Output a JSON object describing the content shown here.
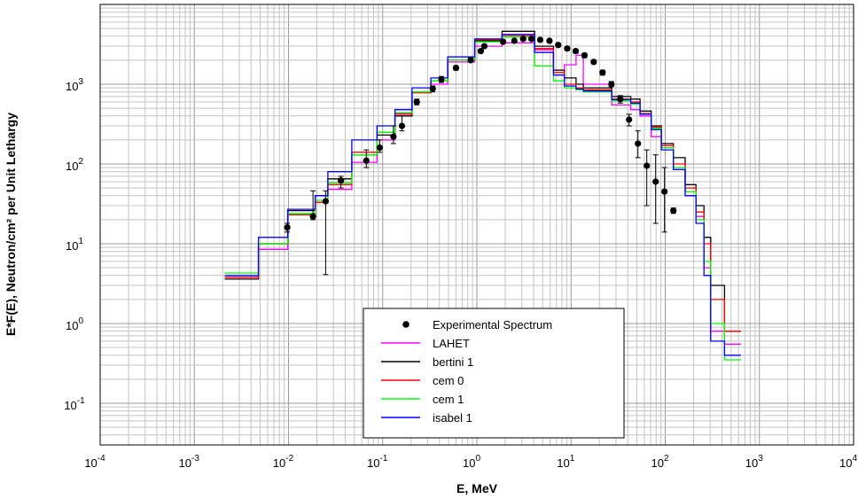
{
  "chart_data": {
    "type": "line",
    "title": "",
    "xlabel": "E, MeV",
    "ylabel": "E*F(E), Neutron/cm² per Unit Lethargy",
    "xscale": "log",
    "yscale": "log",
    "xlim": [
      0.0001,
      10000
    ],
    "ylim": [
      0.03,
      10000
    ],
    "grid": true,
    "legend_position": "bottom-center",
    "x_ticks": [
      {
        "value": 0.0001,
        "base": "10",
        "exp": "-4"
      },
      {
        "value": 0.001,
        "base": "10",
        "exp": "-3"
      },
      {
        "value": 0.01,
        "base": "10",
        "exp": "-2"
      },
      {
        "value": 0.1,
        "base": "10",
        "exp": "-1"
      },
      {
        "value": 1,
        "base": "10",
        "exp": "0"
      },
      {
        "value": 10,
        "base": "10",
        "exp": "1"
      },
      {
        "value": 100,
        "base": "10",
        "exp": "2"
      },
      {
        "value": 1000,
        "base": "10",
        "exp": "3"
      },
      {
        "value": 10000,
        "base": "10",
        "exp": "4"
      }
    ],
    "y_ticks": [
      {
        "value": 0.1,
        "base": "10",
        "exp": "-1"
      },
      {
        "value": 1,
        "base": "10",
        "exp": "0"
      },
      {
        "value": 10,
        "base": "10",
        "exp": "1"
      },
      {
        "value": 100,
        "base": "10",
        "exp": "2"
      },
      {
        "value": 1000,
        "base": "10",
        "exp": "3"
      }
    ],
    "experimental": {
      "name": "Experimental Spectrum",
      "color": "#000000",
      "points": [
        {
          "x": 0.0097,
          "y": 16,
          "lo": 14,
          "hi": 18
        },
        {
          "x": 0.0182,
          "y": 22,
          "lo": 20,
          "hi": 46
        },
        {
          "x": 0.0248,
          "y": 34,
          "lo": 4.1,
          "hi": 46
        },
        {
          "x": 0.036,
          "y": 62,
          "lo": 50,
          "hi": 70
        },
        {
          "x": 0.067,
          "y": 110,
          "lo": 90,
          "hi": 150
        },
        {
          "x": 0.093,
          "y": 160,
          "lo": 140,
          "hi": 200
        },
        {
          "x": 0.13,
          "y": 220,
          "lo": 180,
          "hi": 300
        },
        {
          "x": 0.16,
          "y": 300,
          "lo": 260,
          "hi": 400
        },
        {
          "x": 0.23,
          "y": 600,
          "lo": 550,
          "hi": 650
        },
        {
          "x": 0.34,
          "y": 880,
          "lo": 800,
          "hi": 950
        },
        {
          "x": 0.42,
          "y": 1150,
          "lo": 1050,
          "hi": 1250
        },
        {
          "x": 0.6,
          "y": 1600,
          "lo": 1500,
          "hi": 1700
        },
        {
          "x": 0.86,
          "y": 2000,
          "lo": 1900,
          "hi": 2150
        },
        {
          "x": 1.1,
          "y": 2600,
          "lo": 2500,
          "hi": 2750
        },
        {
          "x": 1.2,
          "y": 3000,
          "lo": 2850,
          "hi": 3150
        },
        {
          "x": 1.9,
          "y": 3400,
          "lo": 3250,
          "hi": 3550
        },
        {
          "x": 2.5,
          "y": 3500,
          "lo": 3350,
          "hi": 3650
        },
        {
          "x": 3.1,
          "y": 3700,
          "lo": 3550,
          "hi": 3850
        },
        {
          "x": 3.8,
          "y": 3700,
          "lo": 3550,
          "hi": 3850
        },
        {
          "x": 4.7,
          "y": 3600,
          "lo": 3450,
          "hi": 3750
        },
        {
          "x": 5.9,
          "y": 3500,
          "lo": 3350,
          "hi": 3650
        },
        {
          "x": 7.3,
          "y": 3100,
          "lo": 2950,
          "hi": 3250
        },
        {
          "x": 9.1,
          "y": 2800,
          "lo": 2650,
          "hi": 2950
        },
        {
          "x": 11.2,
          "y": 2600,
          "lo": 2450,
          "hi": 2750
        },
        {
          "x": 13.9,
          "y": 2300,
          "lo": 2150,
          "hi": 2450
        },
        {
          "x": 17.4,
          "y": 1900,
          "lo": 1800,
          "hi": 2000
        },
        {
          "x": 21.6,
          "y": 1400,
          "lo": 1300,
          "hi": 1500
        },
        {
          "x": 26.8,
          "y": 1000,
          "lo": 930,
          "hi": 1080
        },
        {
          "x": 33.3,
          "y": 650,
          "lo": 580,
          "hi": 720
        },
        {
          "x": 41.3,
          "y": 360,
          "lo": 300,
          "hi": 420
        },
        {
          "x": 51.3,
          "y": 180,
          "lo": 120,
          "hi": 260
        },
        {
          "x": 63.7,
          "y": 95,
          "lo": 30,
          "hi": 150
        },
        {
          "x": 79.1,
          "y": 60,
          "lo": 18,
          "hi": 130
        },
        {
          "x": 98.2,
          "y": 45,
          "lo": 14,
          "hi": 90
        },
        {
          "x": 122,
          "y": 26,
          "lo": 24,
          "hi": 28
        }
      ]
    },
    "series": [
      {
        "name": "LAHET",
        "color": "#ff00ff",
        "bins": [
          [
            0.0021,
            3.8
          ],
          [
            0.0048,
            8.5
          ],
          [
            0.0098,
            23
          ],
          [
            0.0192,
            33
          ],
          [
            0.0262,
            48
          ],
          [
            0.047,
            105
          ],
          [
            0.087,
            200
          ],
          [
            0.135,
            430
          ],
          [
            0.205,
            800
          ],
          [
            0.325,
            1000
          ],
          [
            0.49,
            1900
          ],
          [
            0.95,
            3000
          ],
          [
            1.85,
            3300
          ],
          [
            4.1,
            2700
          ],
          [
            6.5,
            1500
          ],
          [
            8.5,
            1750
          ],
          [
            11.3,
            2300
          ],
          [
            13.5,
            1000
          ],
          [
            27,
            550
          ],
          [
            43,
            480
          ],
          [
            54,
            400
          ],
          [
            71,
            220
          ],
          [
            91,
            160
          ],
          [
            122,
            90
          ],
          [
            163,
            40
          ],
          [
            212,
            22
          ],
          [
            258,
            5
          ],
          [
            304,
            0.8
          ],
          [
            426,
            0.55
          ],
          [
            512,
            0.55
          ]
        ]
      },
      {
        "name": "bertini 1",
        "color": "#000000",
        "bins": [
          [
            0.0021,
            3.6
          ],
          [
            0.0048,
            10
          ],
          [
            0.0098,
            26
          ],
          [
            0.0192,
            40
          ],
          [
            0.0262,
            65
          ],
          [
            0.047,
            130
          ],
          [
            0.087,
            230
          ],
          [
            0.135,
            400
          ],
          [
            0.205,
            800
          ],
          [
            0.325,
            1100
          ],
          [
            0.49,
            2000
          ],
          [
            0.95,
            3500
          ],
          [
            1.85,
            4600
          ],
          [
            4.1,
            3000
          ],
          [
            6.5,
            1500
          ],
          [
            8.5,
            1200
          ],
          [
            11.3,
            1000
          ],
          [
            13.5,
            900
          ],
          [
            27,
            700
          ],
          [
            43,
            650
          ],
          [
            54,
            460
          ],
          [
            71,
            300
          ],
          [
            91,
            180
          ],
          [
            122,
            120
          ],
          [
            163,
            55
          ],
          [
            212,
            30
          ],
          [
            258,
            12
          ],
          [
            304,
            3
          ],
          [
            426,
            0.8
          ],
          [
            512,
            0.8
          ]
        ]
      },
      {
        "name": "cem 0",
        "color": "#ff0000",
        "bins": [
          [
            0.0021,
            3.8
          ],
          [
            0.0048,
            10
          ],
          [
            0.0098,
            23
          ],
          [
            0.0192,
            33
          ],
          [
            0.0262,
            55
          ],
          [
            0.047,
            140
          ],
          [
            0.087,
            250
          ],
          [
            0.135,
            420
          ],
          [
            0.205,
            780
          ],
          [
            0.325,
            1100
          ],
          [
            0.49,
            2000
          ],
          [
            0.95,
            3600
          ],
          [
            1.85,
            4100
          ],
          [
            4.1,
            2800
          ],
          [
            6.5,
            1400
          ],
          [
            8.5,
            1000
          ],
          [
            11.3,
            900
          ],
          [
            13.5,
            850
          ],
          [
            27,
            650
          ],
          [
            43,
            600
          ],
          [
            54,
            430
          ],
          [
            71,
            290
          ],
          [
            91,
            170
          ],
          [
            122,
            100
          ],
          [
            163,
            50
          ],
          [
            212,
            25
          ],
          [
            258,
            10
          ],
          [
            304,
            2
          ],
          [
            426,
            0.8
          ],
          [
            512,
            0.8
          ]
        ]
      },
      {
        "name": "cem 1",
        "color": "#00ff00",
        "bins": [
          [
            0.0021,
            4.3
          ],
          [
            0.0048,
            10
          ],
          [
            0.0098,
            24
          ],
          [
            0.0192,
            35
          ],
          [
            0.0262,
            58
          ],
          [
            0.047,
            130
          ],
          [
            0.087,
            250
          ],
          [
            0.135,
            440
          ],
          [
            0.205,
            800
          ],
          [
            0.325,
            1100
          ],
          [
            0.49,
            2000
          ],
          [
            0.95,
            3400
          ],
          [
            1.85,
            3900
          ],
          [
            4.1,
            1700
          ],
          [
            6.5,
            1100
          ],
          [
            8.5,
            900
          ],
          [
            11.3,
            850
          ],
          [
            13.5,
            800
          ],
          [
            27,
            620
          ],
          [
            43,
            560
          ],
          [
            54,
            420
          ],
          [
            71,
            280
          ],
          [
            91,
            160
          ],
          [
            122,
            90
          ],
          [
            163,
            45
          ],
          [
            212,
            20
          ],
          [
            258,
            6
          ],
          [
            304,
            1
          ],
          [
            426,
            0.35
          ],
          [
            512,
            0.35
          ]
        ]
      },
      {
        "name": "isabel 1",
        "color": "#0000ff",
        "bins": [
          [
            0.0021,
            4
          ],
          [
            0.0048,
            12
          ],
          [
            0.0098,
            27
          ],
          [
            0.0192,
            40
          ],
          [
            0.0262,
            80
          ],
          [
            0.047,
            200
          ],
          [
            0.087,
            300
          ],
          [
            0.135,
            480
          ],
          [
            0.205,
            900
          ],
          [
            0.325,
            1200
          ],
          [
            0.49,
            2200
          ],
          [
            0.95,
            3700
          ],
          [
            1.85,
            4200
          ],
          [
            4.1,
            2500
          ],
          [
            6.5,
            1300
          ],
          [
            8.5,
            950
          ],
          [
            11.3,
            870
          ],
          [
            13.5,
            820
          ],
          [
            27,
            640
          ],
          [
            43,
            580
          ],
          [
            54,
            420
          ],
          [
            71,
            270
          ],
          [
            91,
            150
          ],
          [
            122,
            85
          ],
          [
            163,
            40
          ],
          [
            212,
            18
          ],
          [
            258,
            4
          ],
          [
            304,
            0.6
          ],
          [
            426,
            0.4
          ],
          [
            512,
            0.4
          ]
        ]
      }
    ]
  }
}
